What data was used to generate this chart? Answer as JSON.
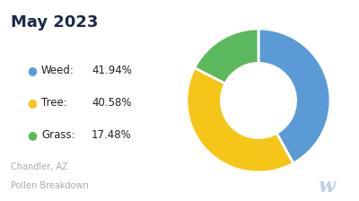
{
  "title": "May 2023",
  "subtitle1": "Chandler, AZ",
  "subtitle2": "Pollen Breakdown",
  "values": [
    41.94,
    40.58,
    17.48
  ],
  "colors": [
    "#5B9BD5",
    "#F5C518",
    "#5CB85C"
  ],
  "legend_items": [
    {
      "label": "Weed:",
      "pct": "41.94%"
    },
    {
      "label": "Tree:",
      "pct": "40.58%"
    },
    {
      "label": "Grass:",
      "pct": "17.48%"
    }
  ],
  "background_color": "#FFFFFF",
  "title_color": "#1B2A4A",
  "subtitle_color": "#AAAAAA",
  "watermark_color": "#BFCFE8",
  "donut_width": 0.48,
  "edge_color": "white",
  "edge_linewidth": 2.0
}
